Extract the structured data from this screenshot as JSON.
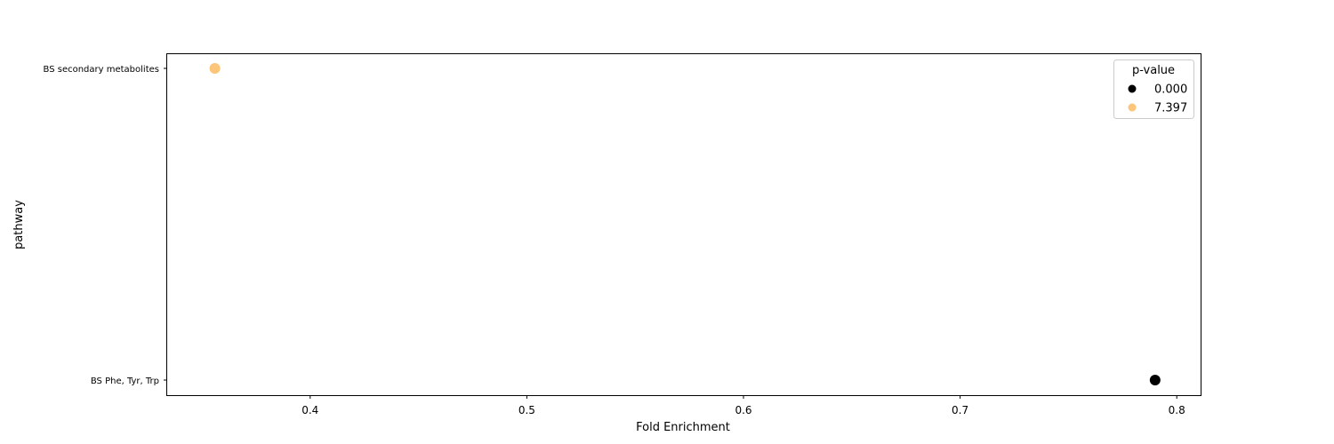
{
  "chart_data": {
    "type": "scatter",
    "title": "",
    "xlabel": "Fold Enrichment",
    "ylabel": "pathway",
    "xlim": [
      0.334,
      0.811
    ],
    "x_ticks": [
      {
        "value": 0.4,
        "label": "0.4"
      },
      {
        "value": 0.5,
        "label": "0.5"
      },
      {
        "value": 0.6,
        "label": "0.6"
      },
      {
        "value": 0.7,
        "label": "0.7"
      },
      {
        "value": 0.8,
        "label": "0.8"
      }
    ],
    "categories": [
      "BS secondary metabolites",
      "BS Phe, Tyr, Trp"
    ],
    "points": [
      {
        "category": "BS secondary metabolites",
        "x": 0.356,
        "p_value": 7.397,
        "color": "#fdc57a"
      },
      {
        "category": "BS Phe, Tyr, Trp",
        "x": 0.79,
        "p_value": 0.0,
        "color": "#000000"
      }
    ],
    "legend": {
      "title": "p-value",
      "placement": "top-right",
      "entries": [
        {
          "label": "0.000",
          "color": "#000000"
        },
        {
          "label": "7.397",
          "color": "#fdc57a"
        }
      ]
    },
    "grid": false
  }
}
